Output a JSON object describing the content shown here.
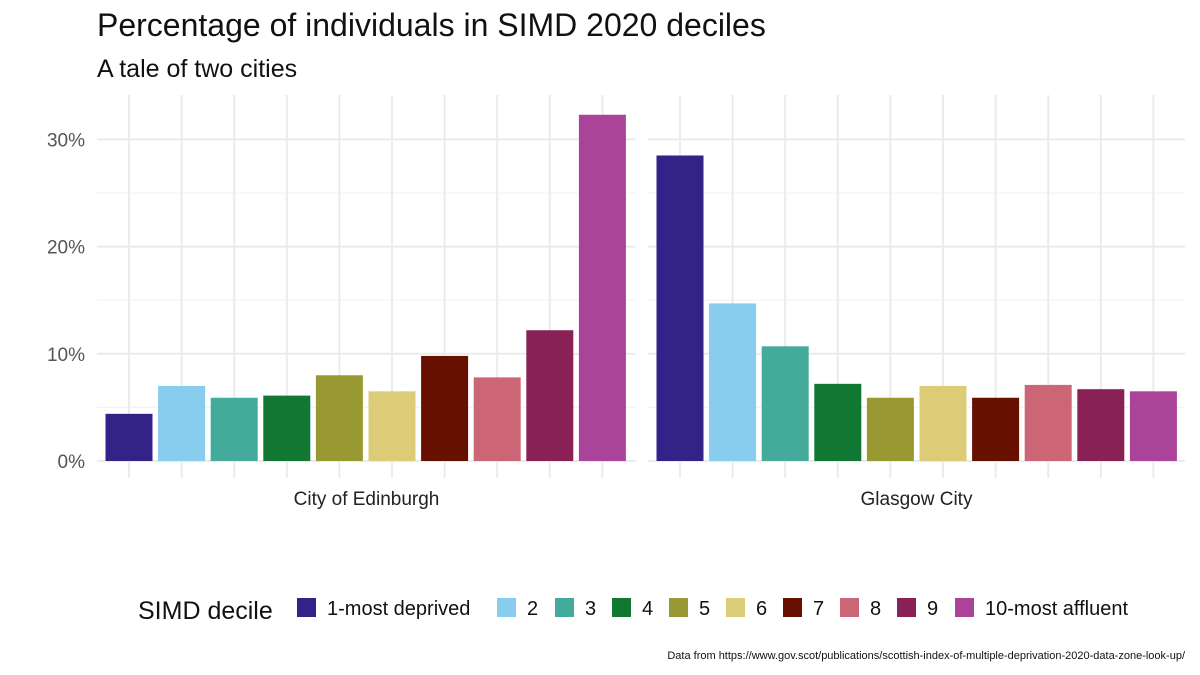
{
  "chart_data": {
    "type": "bar",
    "title": "Percentage of individuals in SIMD 2020 deciles",
    "subtitle": "A tale of two cities",
    "xlabel": "",
    "ylabel": "",
    "ylim": [
      0,
      33
    ],
    "yticks": [
      0,
      10,
      20,
      30
    ],
    "ytick_labels": [
      "0%",
      "10%",
      "20%",
      "30%"
    ],
    "grid": true,
    "legend": {
      "title": "SIMD decile",
      "position": "bottom",
      "entries": [
        {
          "label": "1-most deprived",
          "color": "#332288"
        },
        {
          "label": "2",
          "color": "#88CCEE"
        },
        {
          "label": "3",
          "color": "#44AA99"
        },
        {
          "label": "4",
          "color": "#117733"
        },
        {
          "label": "5",
          "color": "#999933"
        },
        {
          "label": "6",
          "color": "#DDCC77"
        },
        {
          "label": "7",
          "color": "#661100"
        },
        {
          "label": "8",
          "color": "#CC6677"
        },
        {
          "label": "9",
          "color": "#882255"
        },
        {
          "label": "10-most affluent",
          "color": "#AA4499"
        }
      ]
    },
    "categories": [
      "1-most deprived",
      "2",
      "3",
      "4",
      "5",
      "6",
      "7",
      "8",
      "9",
      "10-most affluent"
    ],
    "facets": [
      {
        "name": "City of Edinburgh",
        "values": [
          4.4,
          7.0,
          5.9,
          6.1,
          8.0,
          6.5,
          9.8,
          7.8,
          12.2,
          32.3
        ]
      },
      {
        "name": "Glasgow City",
        "values": [
          28.5,
          14.7,
          10.7,
          7.2,
          5.9,
          7.0,
          5.9,
          7.1,
          6.7,
          6.5
        ]
      }
    ],
    "caption": "Data from https://www.gov.scot/publications/scottish-index-of-multiple-deprivation-2020-data-zone-look-up/"
  }
}
